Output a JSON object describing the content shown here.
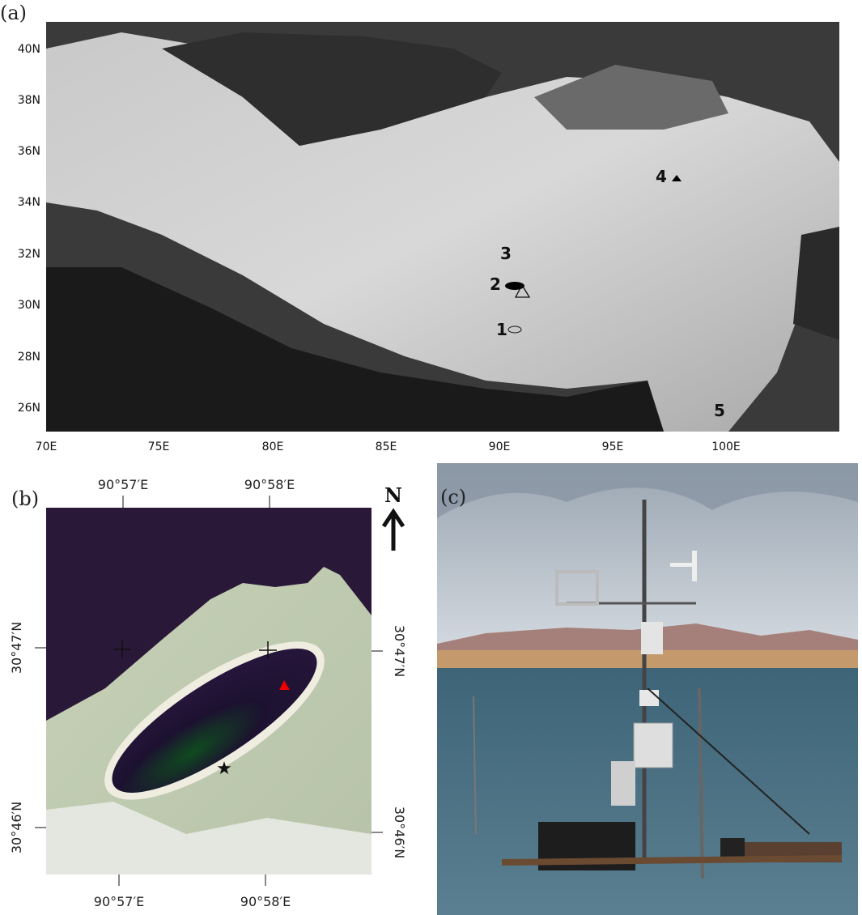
{
  "panel_a": {
    "label": "(a)",
    "lat_labels": [
      "40N",
      "38N",
      "36N",
      "34N",
      "32N",
      "30N",
      "28N",
      "26N"
    ],
    "lon_labels": [
      "70E",
      "75E",
      "80E",
      "85E",
      "90E",
      "95E",
      "100E"
    ],
    "sites": [
      "1",
      "2",
      "3",
      "4",
      "5"
    ]
  },
  "panel_b": {
    "label": "(b)",
    "north": "N",
    "top_labels": [
      "90°57′E",
      "90°58′E"
    ],
    "bottom_labels": [
      "90°57′E",
      "90°58′E"
    ],
    "left_labels": [
      "30°47′N",
      "30°46′N"
    ],
    "right_labels": [
      "30°47′N",
      "30°46′N"
    ]
  },
  "panel_c": {
    "label": "(c)"
  }
}
